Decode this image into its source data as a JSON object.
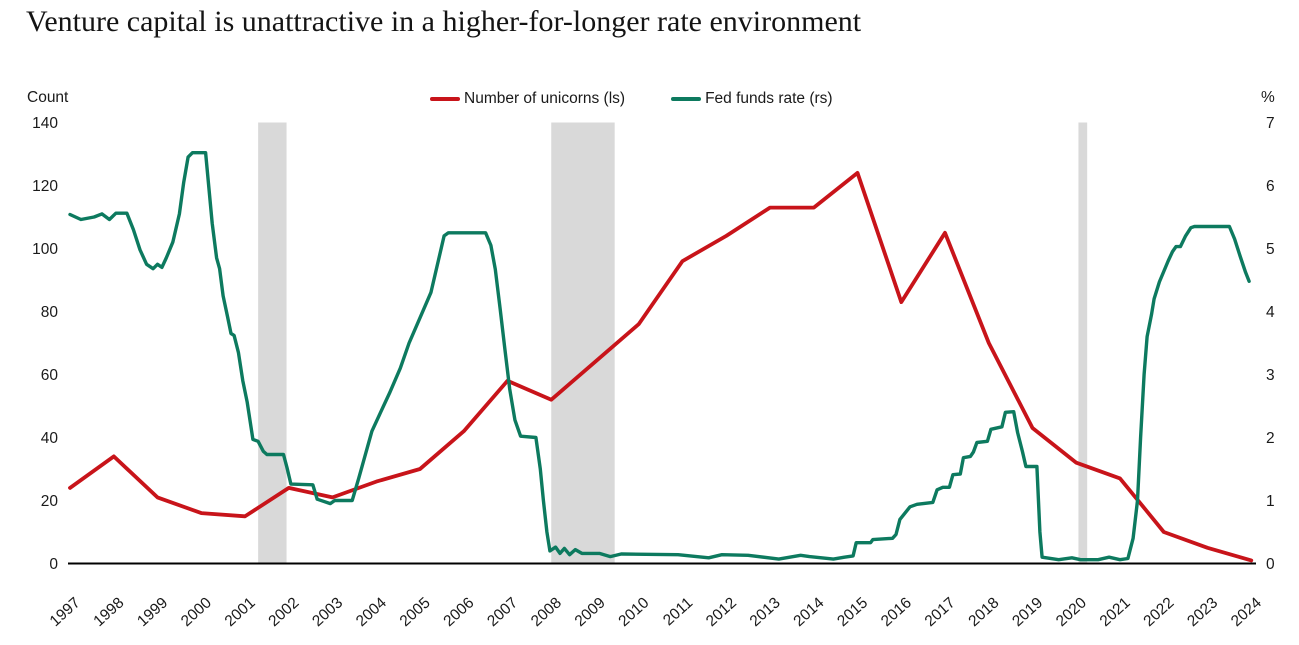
{
  "title": "Venture capital is unattractive in a higher-for-longer rate environment",
  "legend": {
    "items": [
      {
        "label": "Number of unicorns (ls)",
        "color": "#c8141a"
      },
      {
        "label": "Fed funds rate (rs)",
        "color": "#0d7a5f"
      }
    ]
  },
  "left_axis_unit": "Count",
  "right_axis_unit": "%",
  "colors": {
    "unicorns_red": "#c8141a",
    "fedfunds_green": "#0d7a5f",
    "recession_band": "#d9d9d9",
    "axis_line": "#000000"
  },
  "chart_data": {
    "type": "line",
    "title": "Venture capital is unattractive in a higher-for-longer rate environment",
    "left_axis": {
      "label": "Count",
      "ticks": [
        140,
        120,
        100,
        80,
        60,
        40,
        20,
        0
      ],
      "range": [
        0,
        140
      ]
    },
    "right_axis": {
      "label": "%",
      "ticks": [
        7,
        6,
        5,
        4,
        3,
        2,
        1,
        0
      ],
      "range": [
        0,
        7
      ]
    },
    "x_axis": {
      "years": [
        1997,
        1998,
        1999,
        2000,
        2001,
        2002,
        2003,
        2004,
        2005,
        2006,
        2007,
        2008,
        2009,
        2010,
        2011,
        2012,
        2013,
        2014,
        2015,
        2016,
        2017,
        2018,
        2019,
        2020,
        2021,
        2022,
        2023,
        2024
      ]
    },
    "recession_bands": [
      [
        2001.3,
        2001.95
      ],
      [
        2008.0,
        2009.45
      ],
      [
        2020.05,
        2020.25
      ]
    ],
    "series": [
      {
        "name": "Number of unicorns (ls)",
        "axis": "left",
        "color": "#c8141a",
        "points": [
          [
            1997,
            24
          ],
          [
            1998,
            34
          ],
          [
            1999,
            21
          ],
          [
            2000,
            16
          ],
          [
            2001,
            15
          ],
          [
            2002,
            24
          ],
          [
            2003,
            21
          ],
          [
            2004,
            26
          ],
          [
            2005,
            30
          ],
          [
            2006,
            42
          ],
          [
            2007,
            58
          ],
          [
            2008,
            52
          ],
          [
            2009,
            64
          ],
          [
            2010,
            76
          ],
          [
            2011,
            96
          ],
          [
            2012,
            104
          ],
          [
            2013,
            113
          ],
          [
            2014,
            113
          ],
          [
            2015,
            124
          ],
          [
            2016,
            83
          ],
          [
            2017,
            105
          ],
          [
            2018,
            70
          ],
          [
            2019,
            43
          ],
          [
            2020,
            32
          ],
          [
            2021,
            27
          ],
          [
            2022,
            10
          ],
          [
            2023,
            5
          ],
          [
            2024,
            1
          ]
        ]
      },
      {
        "name": "Fed funds rate (rs)",
        "axis": "right",
        "color": "#0d7a5f",
        "points": [
          [
            1997.0,
            5.54
          ],
          [
            1997.25,
            5.46
          ],
          [
            1997.55,
            5.5
          ],
          [
            1997.73,
            5.55
          ],
          [
            1997.9,
            5.46
          ],
          [
            1998.05,
            5.56
          ],
          [
            1998.3,
            5.56
          ],
          [
            1998.45,
            5.3
          ],
          [
            1998.6,
            4.98
          ],
          [
            1998.75,
            4.75
          ],
          [
            1998.9,
            4.68
          ],
          [
            1999.0,
            4.75
          ],
          [
            1999.1,
            4.7
          ],
          [
            1999.2,
            4.85
          ],
          [
            1999.35,
            5.1
          ],
          [
            1999.5,
            5.55
          ],
          [
            1999.6,
            6.05
          ],
          [
            1999.7,
            6.45
          ],
          [
            1999.8,
            6.52
          ],
          [
            2000.1,
            6.52
          ],
          [
            2000.25,
            5.4
          ],
          [
            2000.35,
            4.85
          ],
          [
            2000.42,
            4.68
          ],
          [
            2000.5,
            4.25
          ],
          [
            2000.6,
            3.92
          ],
          [
            2000.68,
            3.65
          ],
          [
            2000.75,
            3.62
          ],
          [
            2000.85,
            3.35
          ],
          [
            2000.95,
            2.9
          ],
          [
            2001.05,
            2.56
          ],
          [
            2001.12,
            2.25
          ],
          [
            2001.18,
            1.97
          ],
          [
            2001.3,
            1.94
          ],
          [
            2001.42,
            1.78
          ],
          [
            2001.5,
            1.73
          ],
          [
            2001.88,
            1.73
          ],
          [
            2001.96,
            1.52
          ],
          [
            2002.05,
            1.26
          ],
          [
            2002.55,
            1.25
          ],
          [
            2002.65,
            1.02
          ],
          [
            2002.95,
            0.95
          ],
          [
            2003.05,
            1.0
          ],
          [
            2003.45,
            1.0
          ],
          [
            2003.6,
            1.35
          ],
          [
            2003.7,
            1.6
          ],
          [
            2003.8,
            1.85
          ],
          [
            2003.9,
            2.1
          ],
          [
            2004.1,
            2.4
          ],
          [
            2004.3,
            2.7
          ],
          [
            2004.55,
            3.1
          ],
          [
            2004.75,
            3.5
          ],
          [
            2005.0,
            3.9
          ],
          [
            2005.25,
            4.3
          ],
          [
            2005.4,
            4.75
          ],
          [
            2005.55,
            5.2
          ],
          [
            2005.65,
            5.25
          ],
          [
            2006.5,
            5.25
          ],
          [
            2006.62,
            5.05
          ],
          [
            2006.72,
            4.67
          ],
          [
            2006.83,
            4.05
          ],
          [
            2006.94,
            3.4
          ],
          [
            2007.05,
            2.77
          ],
          [
            2007.17,
            2.28
          ],
          [
            2007.3,
            2.02
          ],
          [
            2007.65,
            2.0
          ],
          [
            2007.75,
            1.5
          ],
          [
            2007.82,
            1.0
          ],
          [
            2007.9,
            0.5
          ],
          [
            2007.97,
            0.2
          ],
          [
            2008.1,
            0.26
          ],
          [
            2008.2,
            0.16
          ],
          [
            2008.3,
            0.24
          ],
          [
            2008.42,
            0.14
          ],
          [
            2008.55,
            0.22
          ],
          [
            2008.7,
            0.16
          ],
          [
            2009.1,
            0.16
          ],
          [
            2009.35,
            0.11
          ],
          [
            2009.6,
            0.15
          ],
          [
            2010.9,
            0.14
          ],
          [
            2011.6,
            0.09
          ],
          [
            2011.9,
            0.14
          ],
          [
            2012.5,
            0.13
          ],
          [
            2013.2,
            0.07
          ],
          [
            2013.45,
            0.1
          ],
          [
            2013.7,
            0.13
          ],
          [
            2013.9,
            0.11
          ],
          [
            2014.45,
            0.07
          ],
          [
            2014.7,
            0.1
          ],
          [
            2014.9,
            0.12
          ],
          [
            2014.97,
            0.33
          ],
          [
            2015.3,
            0.33
          ],
          [
            2015.35,
            0.38
          ],
          [
            2015.8,
            0.4
          ],
          [
            2015.88,
            0.46
          ],
          [
            2015.97,
            0.7
          ],
          [
            2016.2,
            0.9
          ],
          [
            2016.36,
            0.94
          ],
          [
            2016.72,
            0.97
          ],
          [
            2016.82,
            1.17
          ],
          [
            2016.95,
            1.21
          ],
          [
            2017.1,
            1.21
          ],
          [
            2017.18,
            1.41
          ],
          [
            2017.35,
            1.42
          ],
          [
            2017.42,
            1.68
          ],
          [
            2017.58,
            1.7
          ],
          [
            2017.65,
            1.77
          ],
          [
            2017.73,
            1.92
          ],
          [
            2017.97,
            1.94
          ],
          [
            2018.05,
            2.13
          ],
          [
            2018.3,
            2.17
          ],
          [
            2018.38,
            2.4
          ],
          [
            2018.57,
            2.41
          ],
          [
            2018.66,
            2.08
          ],
          [
            2018.77,
            1.78
          ],
          [
            2018.85,
            1.54
          ],
          [
            2019.1,
            1.54
          ],
          [
            2019.17,
            0.5
          ],
          [
            2019.22,
            0.1
          ],
          [
            2019.6,
            0.06
          ],
          [
            2019.9,
            0.09
          ],
          [
            2020.1,
            0.06
          ],
          [
            2020.5,
            0.06
          ],
          [
            2020.75,
            0.1
          ],
          [
            2021.0,
            0.06
          ],
          [
            2021.18,
            0.08
          ],
          [
            2021.3,
            0.4
          ],
          [
            2021.4,
            1.0
          ],
          [
            2021.47,
            2.0
          ],
          [
            2021.55,
            3.0
          ],
          [
            2021.62,
            3.6
          ],
          [
            2021.72,
            3.95
          ],
          [
            2021.78,
            4.2
          ],
          [
            2021.9,
            4.47
          ],
          [
            2022.1,
            4.8
          ],
          [
            2022.2,
            4.95
          ],
          [
            2022.28,
            5.03
          ],
          [
            2022.38,
            5.03
          ],
          [
            2022.5,
            5.2
          ],
          [
            2022.62,
            5.33
          ],
          [
            2022.7,
            5.35
          ],
          [
            2023.5,
            5.35
          ],
          [
            2023.62,
            5.15
          ],
          [
            2023.75,
            4.87
          ],
          [
            2023.87,
            4.62
          ],
          [
            2023.95,
            4.48
          ]
        ]
      }
    ]
  }
}
